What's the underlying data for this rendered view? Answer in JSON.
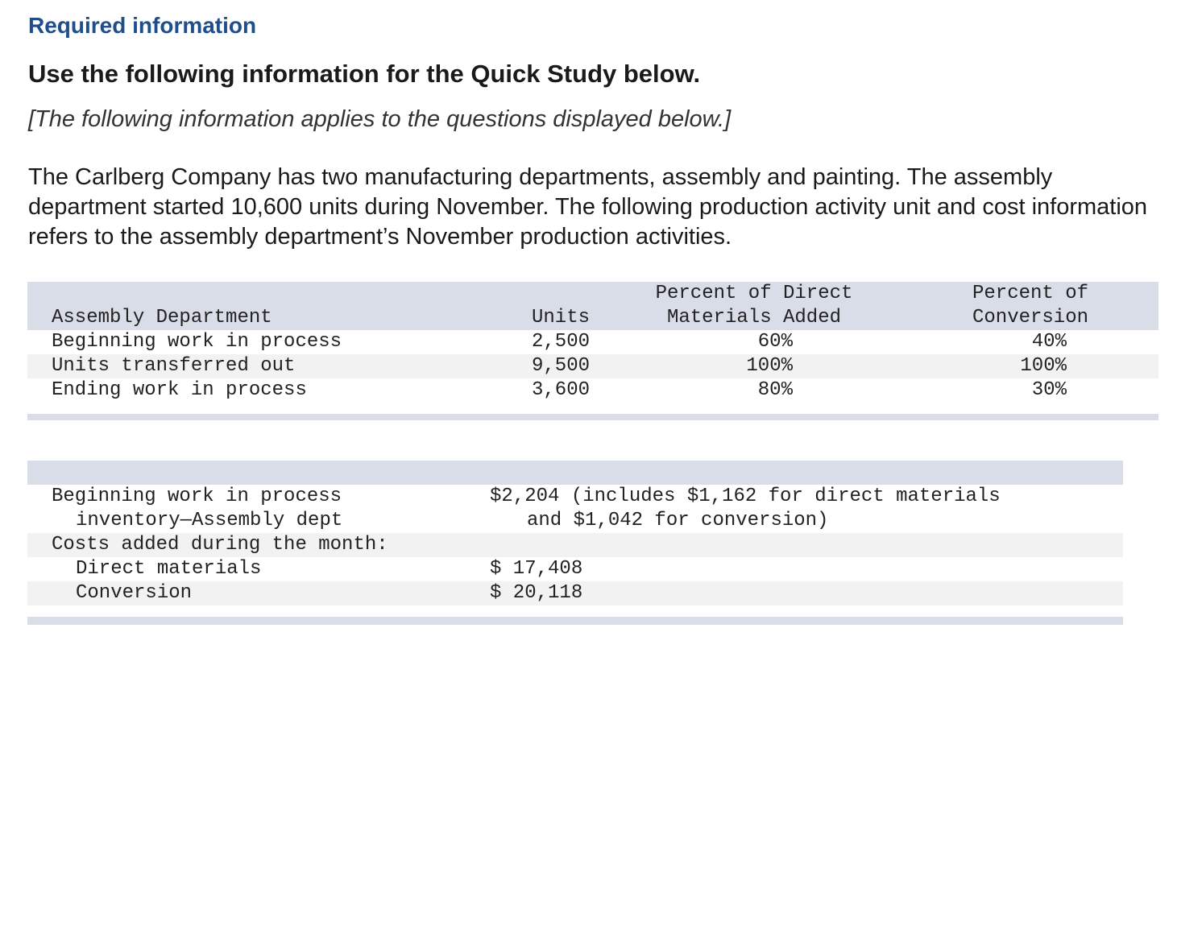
{
  "header": {
    "required": "Required information",
    "use_following": "Use the following information for the Quick Study below.",
    "applies": "[The following information applies to the questions displayed below.]"
  },
  "paragraph": "The Carlberg Company has two manufacturing departments, assembly and painting. The assembly department started 10,600 units during November. The following production activity unit and cost information refers to the assembly department’s November production activities.",
  "units_table": {
    "headers": {
      "col1": "Assembly Department",
      "col2": "Units",
      "col3_line1": "Percent of Direct",
      "col3_line2": "Materials Added",
      "col4_line1": "Percent of",
      "col4_line2": "Conversion"
    },
    "rows": [
      {
        "label": "Beginning work in process",
        "units": "2,500",
        "materials": "60%",
        "conversion": "40%"
      },
      {
        "label": "Units transferred out",
        "units": "9,500",
        "materials": "100%",
        "conversion": "100%"
      },
      {
        "label": "Ending work in process",
        "units": "3,600",
        "materials": "80%",
        "conversion": "30%"
      }
    ]
  },
  "cost_table": {
    "bwip_line1": "Beginning work in process",
    "bwip_line2": "inventory—Assembly dept",
    "bwip_value_line1": "$2,204 (includes $1,162 for direct materials",
    "bwip_value_line2": "and $1,042 for conversion)",
    "costs_added": "Costs added during the month:",
    "direct_materials_label": "Direct materials",
    "direct_materials_value": "$ 17,408",
    "conversion_label": "Conversion",
    "conversion_value": "$ 20,118"
  },
  "colors": {
    "heading_blue": "#1f4e8c",
    "header_band": "#d8dde8",
    "alt_row": "#f2f2f2"
  }
}
